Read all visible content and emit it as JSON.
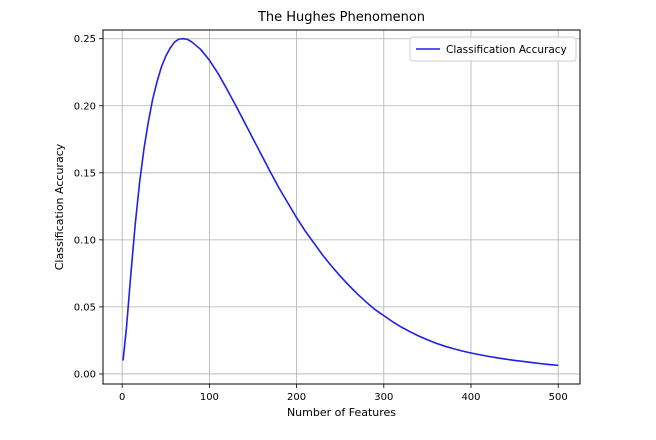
{
  "chart_data": {
    "type": "line",
    "title": "The Hughes Phenomenon",
    "xlabel": "Number of Features",
    "ylabel": "Classification Accuracy",
    "xlim": [
      -22,
      525
    ],
    "ylim": [
      -0.0075,
      0.2565
    ],
    "xticks": [
      0,
      100,
      200,
      300,
      400,
      500
    ],
    "xtick_labels": [
      "0",
      "100",
      "200",
      "300",
      "400",
      "500"
    ],
    "yticks": [
      0.0,
      0.05,
      0.1,
      0.15,
      0.2,
      0.25
    ],
    "ytick_labels": [
      "0.00",
      "0.05",
      "0.10",
      "0.15",
      "0.20",
      "0.25"
    ],
    "grid": true,
    "legend_position": "upper right",
    "series": [
      {
        "name": "Classification Accuracy",
        "color": "#1f1fe8",
        "x": [
          1,
          5,
          10,
          15,
          20,
          25,
          30,
          35,
          40,
          45,
          50,
          55,
          60,
          65,
          70,
          75,
          80,
          90,
          100,
          110,
          120,
          130,
          140,
          150,
          160,
          170,
          180,
          190,
          200,
          210,
          220,
          230,
          240,
          250,
          260,
          270,
          280,
          290,
          300,
          310,
          320,
          330,
          340,
          350,
          360,
          370,
          380,
          390,
          400,
          410,
          420,
          430,
          440,
          450,
          460,
          470,
          480,
          490,
          500
        ],
        "y": [
          0.01,
          0.035,
          0.075,
          0.112,
          0.143,
          0.168,
          0.188,
          0.205,
          0.218,
          0.229,
          0.237,
          0.243,
          0.2475,
          0.2497,
          0.25,
          0.2495,
          0.2475,
          0.242,
          0.234,
          0.224,
          0.2125,
          0.2005,
          0.188,
          0.1755,
          0.163,
          0.1505,
          0.1385,
          0.1275,
          0.1165,
          0.1065,
          0.0975,
          0.0885,
          0.0805,
          0.073,
          0.066,
          0.0595,
          0.0535,
          0.048,
          0.0435,
          0.039,
          0.035,
          0.0315,
          0.0283,
          0.0255,
          0.0229,
          0.0207,
          0.0188,
          0.0171,
          0.0156,
          0.0143,
          0.0131,
          0.012,
          0.011,
          0.0101,
          0.0093,
          0.0085,
          0.0077,
          0.007,
          0.0064
        ]
      }
    ]
  }
}
